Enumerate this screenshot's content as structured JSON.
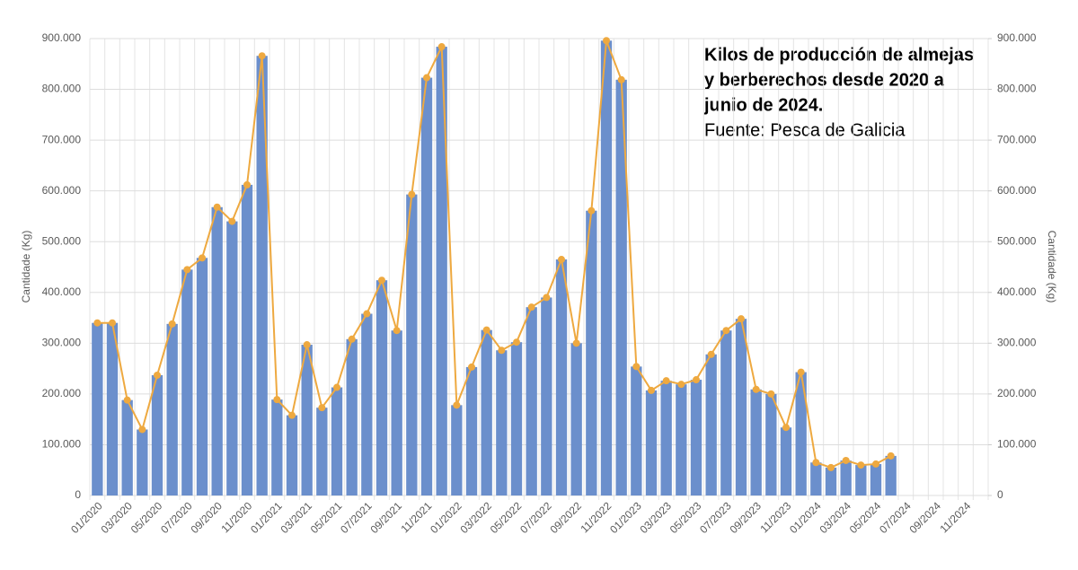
{
  "chart_data": {
    "type": "bar-line",
    "title": [
      "Kilos de producción de almejas",
      "y berberechos desde 2020 a",
      "junio de 2024."
    ],
    "subtitle": "Fuente: Pesca de Galicia",
    "y_label": "Cantidade (Kg)",
    "y2_label": "Cantidade (Kg)",
    "categories": [
      "01/2020",
      null,
      "03/2020",
      null,
      "05/2020",
      null,
      "07/2020",
      null,
      "09/2020",
      null,
      "11/2020",
      null,
      "01/2021",
      null,
      "03/2021",
      null,
      "05/2021",
      null,
      "07/2021",
      null,
      "09/2021",
      null,
      "11/2021",
      null,
      "01/2022",
      null,
      "03/2022",
      null,
      "05/2022",
      null,
      "07/2022",
      null,
      "09/2022",
      null,
      "11/2022",
      null,
      "01/2023",
      null,
      "03/2023",
      null,
      "05/2023",
      null,
      "07/2023",
      null,
      "09/2023",
      null,
      "11/2023",
      null,
      "01/2024",
      null,
      "03/2024",
      null,
      "05/2024",
      null,
      "07/2024",
      null,
      "09/2024",
      null,
      "11/2024",
      null
    ],
    "values": [
      340000,
      340000,
      188000,
      130000,
      237000,
      338000,
      445000,
      468000,
      568000,
      540000,
      612000,
      866000,
      189000,
      158000,
      297000,
      173000,
      213000,
      308000,
      358000,
      424000,
      325000,
      593000,
      823000,
      884000,
      178000,
      253000,
      326000,
      286000,
      302000,
      371000,
      390000,
      465000,
      300000,
      561000,
      896000,
      819000,
      254000,
      207000,
      226000,
      219000,
      228000,
      278000,
      325000,
      348000,
      209000,
      200000,
      134000,
      243000,
      65000,
      55000,
      69000,
      60000,
      62000,
      78000,
      null,
      null,
      null,
      null,
      null,
      null
    ],
    "color": "#6b8fcc",
    "line_color": "#eea940",
    "ylim": [
      0,
      900000
    ],
    "yticks": [
      0,
      {
        "value": 100000,
        "label": "100.000"
      },
      {
        "value": 200000,
        "label": "200.000"
      },
      {
        "value": 300000,
        "label": "300.000"
      },
      {
        "value": 400000,
        "label": "400.000"
      },
      {
        "value": 500000,
        "label": "500.000"
      },
      {
        "value": 600000,
        "label": "600.000"
      },
      {
        "value": 700000,
        "label": "700.000"
      },
      {
        "value": 800000,
        "label": "800.000"
      },
      {
        "value": 900000,
        "label": "900.000"
      }
    ],
    "y2lim": [
      0,
      900000
    ],
    "y2ticks": [
      0,
      {
        "value": 100000,
        "label": "100.000"
      },
      {
        "value": 200000,
        "label": "200.000"
      },
      {
        "value": 300000,
        "label": "300.000"
      },
      {
        "value": 400000,
        "label": "400.000"
      },
      {
        "value": 500000,
        "label": "500.000"
      },
      {
        "value": 600000,
        "label": "600.000"
      },
      {
        "value": 700000,
        "label": "700.000"
      },
      {
        "value": 800000,
        "label": "800.000"
      },
      {
        "value": 900000,
        "label": "900.000"
      }
    ],
    "grid": true
  }
}
